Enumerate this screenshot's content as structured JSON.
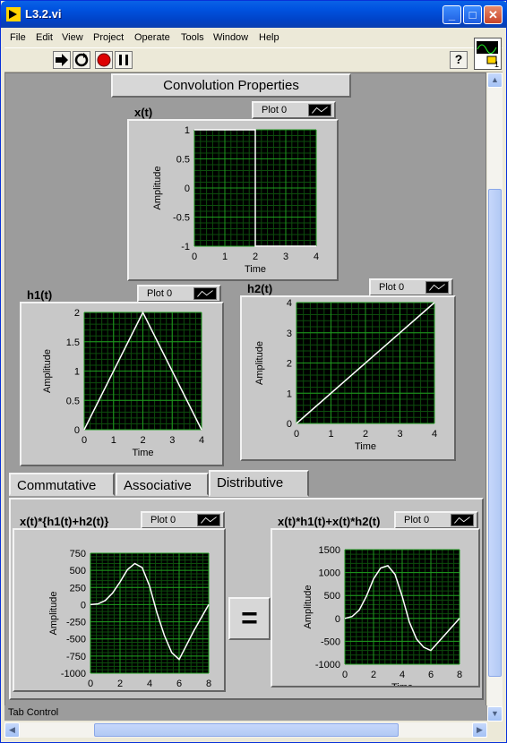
{
  "window": {
    "title": "L3.2.vi",
    "minimize": "_",
    "maximize": "□",
    "close": "✕"
  },
  "menu": [
    "File",
    "Edit",
    "View",
    "Project",
    "Operate",
    "Tools",
    "Window",
    "Help"
  ],
  "toolbar": {
    "help": "?",
    "vi_icon_number": "1"
  },
  "panel": {
    "title": "Convolution Properties",
    "tabs": [
      "Commutative",
      "Associative",
      "Distributive"
    ],
    "active_tab": "Distributive",
    "equals": "=",
    "status": "Tab Control",
    "plot_legend": "Plot 0"
  },
  "graphs": {
    "xt": {
      "label": "x(t)",
      "legend": "Plot 0",
      "xlabel": "Time",
      "ylabel": "Amplitude",
      "xticks": [
        "0",
        "1",
        "2",
        "3",
        "4"
      ],
      "yticks": [
        "1",
        "0.5",
        "0",
        "-0.5",
        "-1"
      ]
    },
    "h1": {
      "label": "h1(t)",
      "legend": "Plot 0",
      "xlabel": "Time",
      "ylabel": "Amplitude",
      "xticks": [
        "0",
        "1",
        "2",
        "3",
        "4"
      ],
      "yticks": [
        "2",
        "1.5",
        "1",
        "0.5",
        "0"
      ]
    },
    "h2": {
      "label": "h2(t)",
      "legend": "Plot 0",
      "xlabel": "Time",
      "ylabel": "Amplitude",
      "xticks": [
        "0",
        "1",
        "2",
        "3",
        "4"
      ],
      "yticks": [
        "4",
        "3",
        "2",
        "1",
        "0"
      ]
    },
    "left": {
      "label": "x(t)*{h1(t)+h2(t)}",
      "legend": "Plot 0",
      "xlabel": "Time",
      "ylabel": "Amplitude",
      "xticks": [
        "0",
        "2",
        "4",
        "6",
        "8"
      ],
      "yticks": [
        "750",
        "500",
        "250",
        "0",
        "-250",
        "-500",
        "-750",
        "-1000"
      ]
    },
    "right": {
      "label": "x(t)*h1(t)+x(t)*h2(t)",
      "legend": "Plot 0",
      "xlabel": "Time",
      "ylabel": "Amplitude",
      "xticks": [
        "0",
        "2",
        "4",
        "6",
        "8"
      ],
      "yticks": [
        "1500",
        "1000",
        "500",
        "0",
        "-500",
        "-1000"
      ]
    }
  },
  "chart_data": [
    {
      "type": "line",
      "name": "x(t)",
      "x": [
        0,
        2,
        2,
        4
      ],
      "y": [
        1,
        1,
        -1,
        -1
      ],
      "xlim": [
        0,
        4
      ],
      "ylim": [
        -1,
        1
      ]
    },
    {
      "type": "line",
      "name": "h1(t)",
      "x": [
        0,
        2,
        4
      ],
      "y": [
        0,
        2,
        0
      ],
      "xlim": [
        0,
        4
      ],
      "ylim": [
        0,
        2
      ]
    },
    {
      "type": "line",
      "name": "h2(t)",
      "x": [
        0,
        4
      ],
      "y": [
        0,
        4
      ],
      "xlim": [
        0,
        4
      ],
      "ylim": [
        0,
        4
      ]
    },
    {
      "type": "line",
      "name": "x(t)*{h1(t)+h2(t)}",
      "x": [
        0,
        0.5,
        1,
        1.5,
        2,
        2.5,
        3,
        3.5,
        4,
        4.5,
        5,
        5.5,
        6,
        7,
        8
      ],
      "y": [
        0,
        10,
        60,
        170,
        330,
        510,
        600,
        540,
        270,
        -120,
        -450,
        -700,
        -800,
        -380,
        0
      ],
      "xlim": [
        0,
        8
      ],
      "ylim": [
        -1000,
        750
      ]
    },
    {
      "type": "line",
      "name": "x(t)*h1(t)+x(t)*h2(t)",
      "x": [
        0,
        0.5,
        1,
        1.5,
        2,
        2.5,
        3,
        3.5,
        4,
        4.5,
        5,
        5.5,
        6,
        7,
        8
      ],
      "y": [
        0,
        40,
        180,
        480,
        860,
        1100,
        1150,
        960,
        480,
        -80,
        -450,
        -630,
        -700,
        -350,
        0
      ],
      "xlim": [
        0,
        8
      ],
      "ylim": [
        -1000,
        1500
      ]
    }
  ]
}
